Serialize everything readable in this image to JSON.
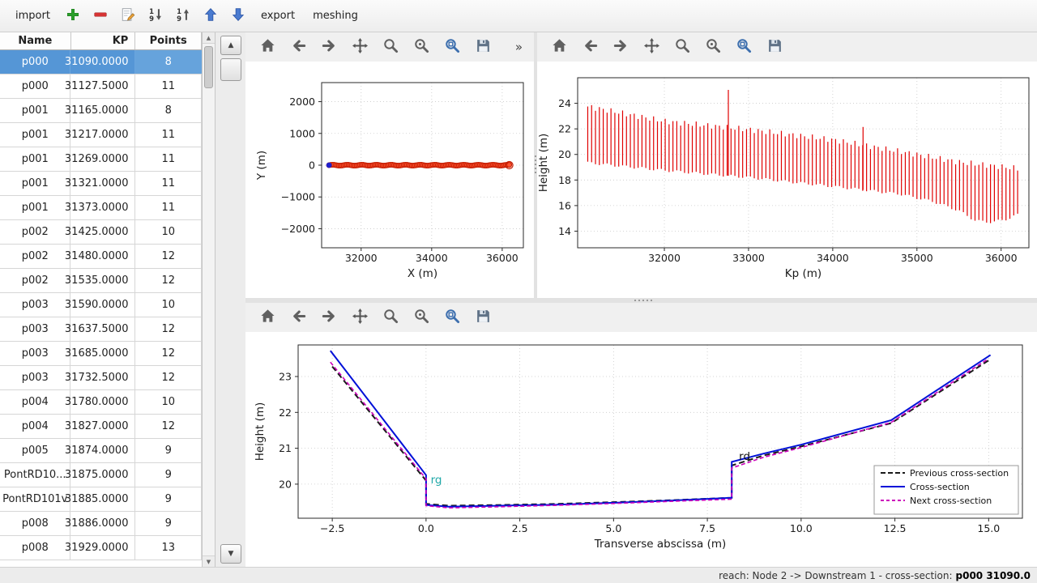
{
  "app": {
    "toolbar": {
      "import_label": "import",
      "export_label": "export",
      "meshing_label": "meshing"
    },
    "status": {
      "prefix": "reach: Node 2 -> Downstream 1 - cross-section:",
      "value": "p000 31090.0"
    }
  },
  "scrollbars": {
    "up_glyph": "▲",
    "down_glyph": "▼"
  },
  "table": {
    "columns": [
      "Name",
      "KP",
      "Points"
    ],
    "selected_index": 0,
    "rows": [
      [
        "p000",
        "31090.0000",
        "8"
      ],
      [
        "p000",
        "31127.5000",
        "11"
      ],
      [
        "p001",
        "31165.0000",
        "8"
      ],
      [
        "p001",
        "31217.0000",
        "11"
      ],
      [
        "p001",
        "31269.0000",
        "11"
      ],
      [
        "p001",
        "31321.0000",
        "11"
      ],
      [
        "p001",
        "31373.0000",
        "11"
      ],
      [
        "p002",
        "31425.0000",
        "10"
      ],
      [
        "p002",
        "31480.0000",
        "12"
      ],
      [
        "p002",
        "31535.0000",
        "12"
      ],
      [
        "p003",
        "31590.0000",
        "10"
      ],
      [
        "p003",
        "31637.5000",
        "12"
      ],
      [
        "p003",
        "31685.0000",
        "12"
      ],
      [
        "p003",
        "31732.5000",
        "12"
      ],
      [
        "p004",
        "31780.0000",
        "10"
      ],
      [
        "p004",
        "31827.0000",
        "12"
      ],
      [
        "p005",
        "31874.0000",
        "9"
      ],
      [
        "PontRD10...",
        "31875.0000",
        "9"
      ],
      [
        "PontRD101v",
        "31885.0000",
        "9"
      ],
      [
        "p008",
        "31886.0000",
        "9"
      ],
      [
        "p008",
        "31929.0000",
        "13"
      ]
    ]
  },
  "plot_toolbar": {
    "overflow": "»",
    "icons": [
      "home-icon",
      "back-icon",
      "forward-icon",
      "pan-icon",
      "zoom-icon",
      "zoom-original-icon",
      "zoom-rect-icon",
      "save-icon"
    ]
  },
  "chart_data": [
    {
      "id": "plan_view",
      "type": "scatter",
      "xlabel": "X (m)",
      "ylabel": "Y (m)",
      "xlim": [
        30880,
        36600
      ],
      "ylim": [
        -2600,
        2600
      ],
      "xticks": [
        32000,
        34000,
        36000
      ],
      "xtick_labels": [
        "32000",
        "34000",
        "36000"
      ],
      "yticks": [
        -2000,
        -1000,
        0,
        1000,
        2000
      ],
      "ytick_labels": [
        "−2000",
        "−1000",
        "0",
        "1000",
        "2000"
      ],
      "grid": true,
      "points_spec": {
        "x_start": 31090,
        "x_end": 36200,
        "count": 112,
        "y": 0,
        "marker_color": "#ff5330",
        "marker_edge": "#c41c00",
        "selected_x": 31090,
        "selected_color": "#2020cc"
      }
    },
    {
      "id": "long_profile",
      "type": "vlines",
      "xlabel": "Kp (m)",
      "ylabel": "Height (m)",
      "xlim": [
        30970,
        36330
      ],
      "ylim": [
        12.7,
        26.0
      ],
      "xticks": [
        32000,
        33000,
        34000,
        35000,
        36000
      ],
      "xtick_labels": [
        "32000",
        "33000",
        "34000",
        "35000",
        "36000"
      ],
      "yticks": [
        14,
        16,
        18,
        20,
        22,
        24
      ],
      "ytick_labels": [
        "14",
        "16",
        "18",
        "20",
        "22",
        "24"
      ],
      "grid": true,
      "color": "#e00000",
      "kp_start": 31090,
      "kp_end": 36200,
      "kp_step": 46,
      "bottom_envelope": [
        [
          31090,
          19.35
        ],
        [
          32000,
          18.75
        ],
        [
          33000,
          18.2
        ],
        [
          34000,
          17.5
        ],
        [
          34800,
          16.9
        ],
        [
          35200,
          16.3
        ],
        [
          35500,
          15.6
        ],
        [
          35700,
          14.8
        ],
        [
          35900,
          14.7
        ],
        [
          36100,
          15.0
        ],
        [
          36200,
          15.3
        ]
      ],
      "top_envelope": [
        [
          31090,
          23.75
        ],
        [
          32000,
          22.6
        ],
        [
          33000,
          21.95
        ],
        [
          34000,
          21.15
        ],
        [
          35000,
          20.0
        ],
        [
          35500,
          19.4
        ],
        [
          36200,
          18.9
        ]
      ],
      "spikes": [
        [
          32760,
          25.05
        ],
        [
          34360,
          22.15
        ]
      ]
    },
    {
      "id": "cross_section",
      "type": "line",
      "xlabel": "Transverse abscissa (m)",
      "ylabel": "Height (m)",
      "xlim": [
        -3.41,
        15.9
      ],
      "ylim": [
        19.05,
        23.88
      ],
      "xticks": [
        -2.5,
        0,
        2.5,
        5,
        7.5,
        10,
        12.5,
        15
      ],
      "xtick_labels": [
        "−2.5",
        "0.0",
        "2.5",
        "5.0",
        "7.5",
        "10.0",
        "12.5",
        "15.0"
      ],
      "yticks": [
        20,
        21,
        22,
        23
      ],
      "ytick_labels": [
        "20",
        "21",
        "22",
        "23"
      ],
      "grid": true,
      "series": [
        {
          "name": "Previous cross-section",
          "color": "#1a1a1a",
          "dash": [
            7,
            4
          ],
          "width": 2,
          "x": [
            -2.5,
            0,
            0,
            0.6,
            2,
            3.5,
            5,
            6.5,
            8.15,
            8.15,
            9,
            10,
            12.4,
            15
          ],
          "y": [
            23.28,
            20.1,
            19.45,
            19.4,
            19.42,
            19.45,
            19.5,
            19.55,
            19.62,
            20.52,
            20.8,
            21.05,
            21.7,
            23.45
          ]
        },
        {
          "name": "Cross-section",
          "color": "#0010d8",
          "dash": null,
          "width": 2,
          "x": [
            -2.55,
            0,
            0,
            0.6,
            2,
            3.5,
            5,
            6.5,
            8.15,
            8.15,
            9,
            10,
            12.4,
            15.05
          ],
          "y": [
            23.72,
            20.25,
            19.42,
            19.37,
            19.4,
            19.43,
            19.48,
            19.54,
            19.62,
            20.62,
            20.85,
            21.1,
            21.78,
            23.6
          ]
        },
        {
          "name": "Next cross-section",
          "color": "#cc00bb",
          "dash": [
            5,
            3
          ],
          "width": 1.6,
          "x": [
            -2.55,
            0,
            0,
            0.6,
            2,
            3.5,
            5,
            6.5,
            8.15,
            8.15,
            9,
            10,
            12.4,
            15
          ],
          "y": [
            23.4,
            20.15,
            19.4,
            19.34,
            19.37,
            19.41,
            19.46,
            19.52,
            19.58,
            20.45,
            20.75,
            21.02,
            21.72,
            23.5
          ]
        }
      ],
      "annotations": [
        {
          "text": "rg",
          "x": 0.08,
          "y": 20.02,
          "color": "#1fa8a8"
        },
        {
          "text": "rd",
          "x": 8.3,
          "y": 20.68,
          "color": "#111111"
        }
      ],
      "legend": {
        "position": "lower right",
        "entries": [
          {
            "label": "Previous cross-section",
            "color": "#1a1a1a",
            "dash": [
              6,
              3
            ]
          },
          {
            "label": "Cross-section",
            "color": "#0010d8",
            "dash": null
          },
          {
            "label": "Next cross-section",
            "color": "#cc00bb",
            "dash": [
              4,
              3
            ]
          }
        ]
      }
    }
  ]
}
